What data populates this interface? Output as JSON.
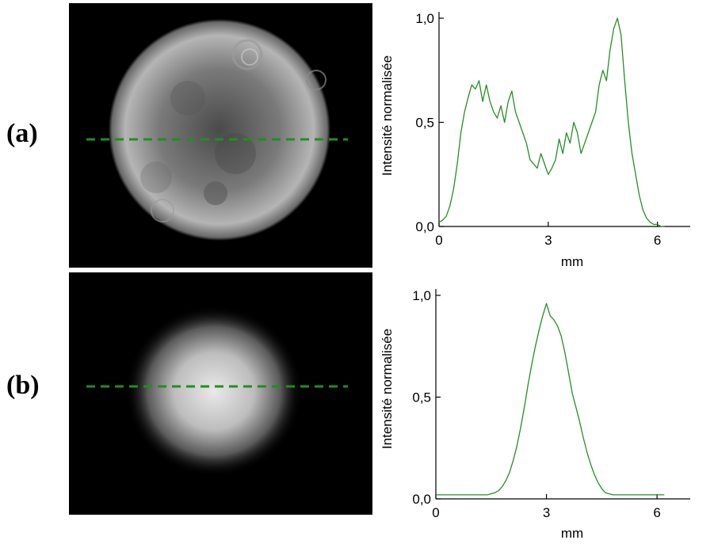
{
  "labels": {
    "a": "(a)",
    "b": "(b)"
  },
  "colors": {
    "profile": "#229122",
    "cut_line": "#1f8f1f",
    "image_bg": "#000000"
  },
  "chart_data": [
    {
      "id": "a",
      "type": "line",
      "xlabel": "mm",
      "ylabel": "Intensité normalisée",
      "xlim": [
        0,
        6.9
      ],
      "ylim": [
        0,
        1.0
      ],
      "xticks": [
        {
          "v": 0,
          "label": "0"
        },
        {
          "v": 3,
          "label": "3"
        },
        {
          "v": 6,
          "label": "6"
        }
      ],
      "yticks": [
        {
          "v": 0,
          "label": "0,0"
        },
        {
          "v": 0.5,
          "label": "0,5"
        },
        {
          "v": 1.0,
          "label": "1,0"
        }
      ],
      "series": [
        {
          "x": [
            0.0,
            0.1,
            0.2,
            0.3,
            0.4,
            0.5,
            0.6,
            0.7,
            0.8,
            0.9,
            1.0,
            1.1,
            1.2,
            1.3,
            1.4,
            1.5,
            1.6,
            1.7,
            1.8,
            1.9,
            2.0,
            2.1,
            2.2,
            2.3,
            2.4,
            2.5,
            2.6,
            2.7,
            2.8,
            2.9,
            3.0,
            3.1,
            3.2,
            3.3,
            3.4,
            3.5,
            3.6,
            3.7,
            3.8,
            3.9,
            4.0,
            4.1,
            4.2,
            4.3,
            4.4,
            4.5,
            4.6,
            4.7,
            4.8,
            4.9,
            5.0,
            5.1,
            5.2,
            5.3,
            5.4,
            5.5,
            5.6,
            5.7,
            5.8,
            5.9,
            6.0,
            6.1,
            6.2
          ],
          "y": [
            0.02,
            0.03,
            0.05,
            0.1,
            0.18,
            0.3,
            0.45,
            0.55,
            0.62,
            0.68,
            0.66,
            0.7,
            0.6,
            0.68,
            0.6,
            0.55,
            0.52,
            0.58,
            0.5,
            0.6,
            0.65,
            0.55,
            0.5,
            0.45,
            0.4,
            0.32,
            0.3,
            0.28,
            0.35,
            0.3,
            0.25,
            0.28,
            0.32,
            0.42,
            0.35,
            0.45,
            0.4,
            0.5,
            0.45,
            0.35,
            0.4,
            0.45,
            0.5,
            0.55,
            0.68,
            0.75,
            0.7,
            0.85,
            0.95,
            1.0,
            0.92,
            0.7,
            0.5,
            0.35,
            0.25,
            0.15,
            0.08,
            0.04,
            0.02,
            0.01,
            0.01,
            0.0,
            0.0
          ]
        }
      ]
    },
    {
      "id": "b",
      "type": "line",
      "xlabel": "mm",
      "ylabel": "Intensité normalisée",
      "xlim": [
        0,
        6.9
      ],
      "ylim": [
        0,
        1.0
      ],
      "xticks": [
        {
          "v": 0,
          "label": "0"
        },
        {
          "v": 3,
          "label": "3"
        },
        {
          "v": 6,
          "label": "6"
        }
      ],
      "yticks": [
        {
          "v": 0,
          "label": "0,0"
        },
        {
          "v": 0.5,
          "label": "0,5"
        },
        {
          "v": 1.0,
          "label": "1,0"
        }
      ],
      "series": [
        {
          "x": [
            0.0,
            0.2,
            0.4,
            0.6,
            0.8,
            1.0,
            1.2,
            1.4,
            1.6,
            1.7,
            1.8,
            1.9,
            2.0,
            2.1,
            2.2,
            2.3,
            2.4,
            2.5,
            2.6,
            2.7,
            2.8,
            2.9,
            3.0,
            3.1,
            3.2,
            3.3,
            3.4,
            3.5,
            3.6,
            3.7,
            3.8,
            3.9,
            4.0,
            4.1,
            4.2,
            4.3,
            4.4,
            4.5,
            4.6,
            4.8,
            5.0,
            5.2,
            5.5,
            5.8,
            6.0,
            6.2
          ],
          "y": [
            0.02,
            0.02,
            0.02,
            0.02,
            0.02,
            0.02,
            0.02,
            0.02,
            0.03,
            0.04,
            0.06,
            0.09,
            0.13,
            0.19,
            0.26,
            0.35,
            0.45,
            0.56,
            0.66,
            0.75,
            0.83,
            0.9,
            0.96,
            0.9,
            0.88,
            0.85,
            0.8,
            0.72,
            0.62,
            0.52,
            0.45,
            0.38,
            0.3,
            0.23,
            0.17,
            0.12,
            0.08,
            0.05,
            0.03,
            0.02,
            0.02,
            0.02,
            0.02,
            0.02,
            0.02,
            0.02
          ]
        }
      ]
    }
  ]
}
